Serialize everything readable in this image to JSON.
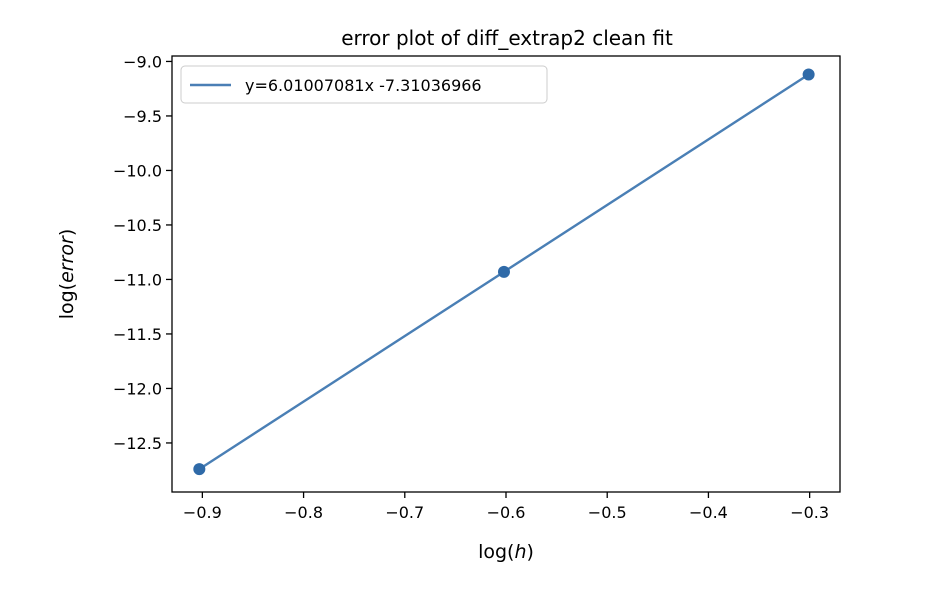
{
  "chart_data": {
    "type": "line",
    "title": "error plot of diff_extrap2 clean fit",
    "xlabel_prefix": "log(",
    "xlabel_var": "h",
    "xlabel_suffix": ")",
    "ylabel_prefix": "log(",
    "ylabel_var": "error",
    "ylabel_suffix": ")",
    "xlim": [
      -0.93,
      -0.27
    ],
    "ylim": [
      -12.95,
      -8.95
    ],
    "xticks": [
      -0.9,
      -0.8,
      -0.7,
      -0.6,
      -0.5,
      -0.4,
      -0.3
    ],
    "xtick_labels": [
      "−0.9",
      "−0.8",
      "−0.7",
      "−0.6",
      "−0.5",
      "−0.4",
      "−0.3"
    ],
    "yticks": [
      -9.0,
      -9.5,
      -10.0,
      -10.5,
      -11.0,
      -11.5,
      -12.0,
      -12.5
    ],
    "ytick_labels": [
      "−9.0",
      "−9.5",
      "−10.0",
      "−10.5",
      "−11.0",
      "−11.5",
      "−12.0",
      "−12.5"
    ],
    "grid": false,
    "legend_position": "top-left",
    "series": [
      {
        "name": "y=6.01007081x -7.31036966",
        "color": "#4a7fb5",
        "x": [
          -0.903,
          -0.602,
          -0.301
        ],
        "y": [
          -12.74,
          -10.93,
          -9.12
        ]
      }
    ],
    "markers": {
      "color": "#2f6aa8",
      "x": [
        -0.903,
        -0.602,
        -0.301
      ],
      "y": [
        -12.74,
        -10.93,
        -9.12
      ]
    }
  }
}
